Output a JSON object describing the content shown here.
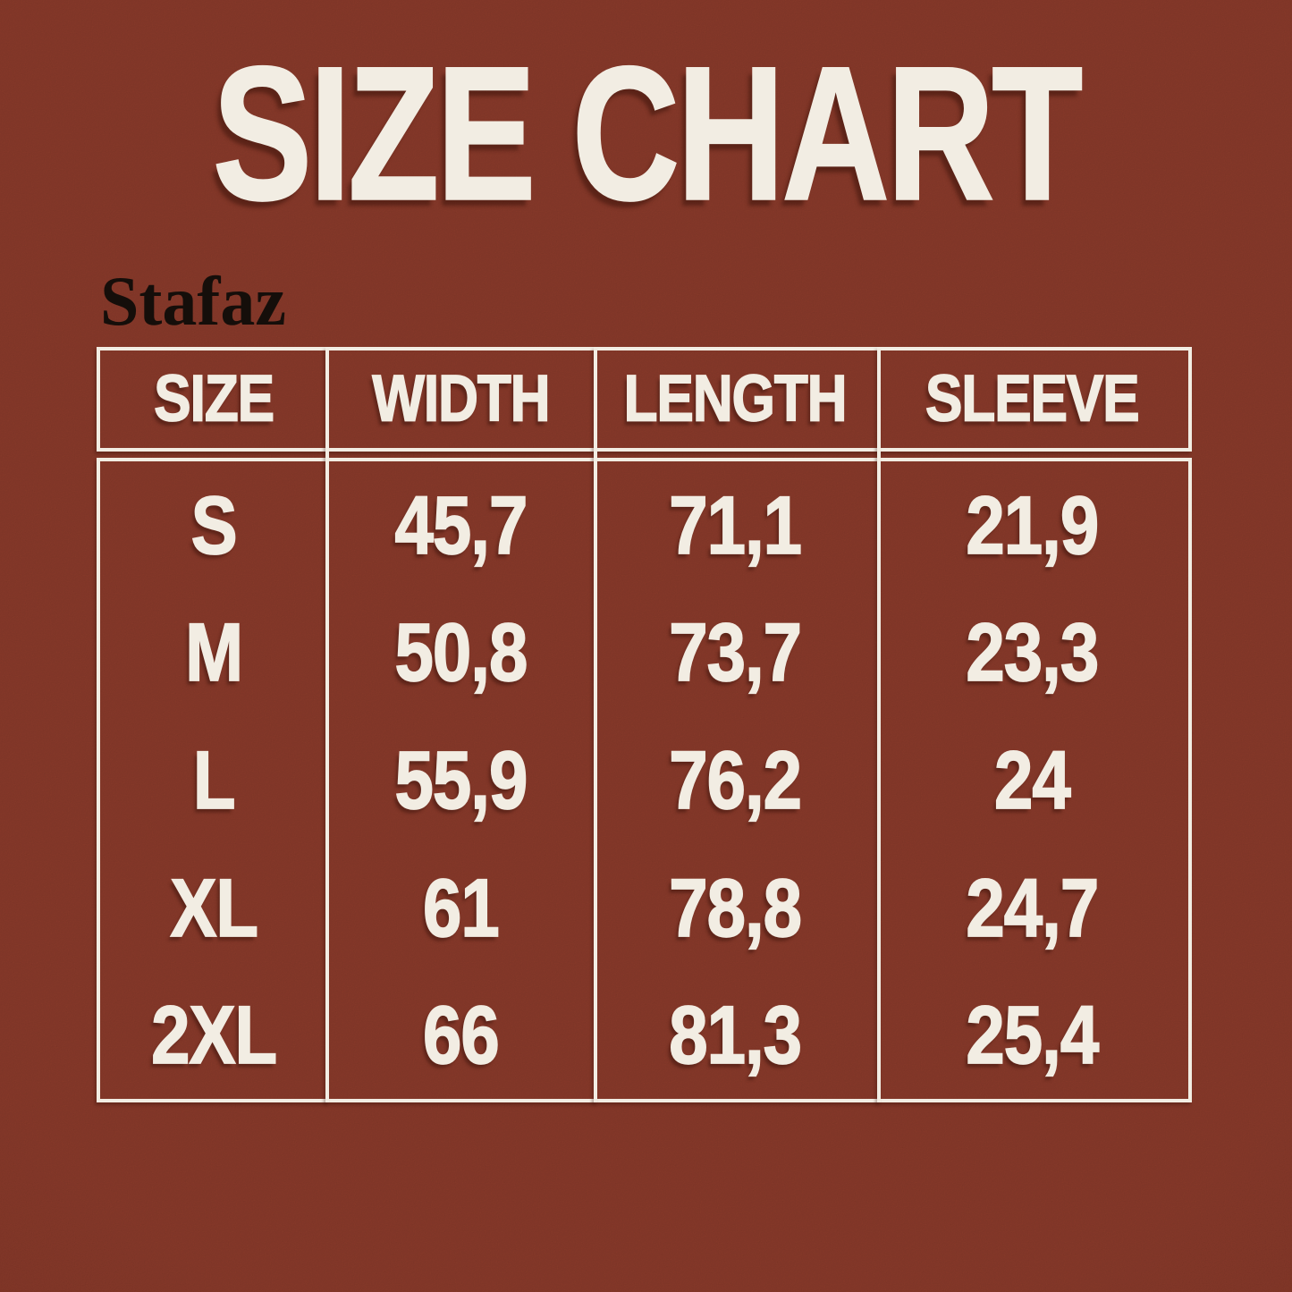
{
  "page": {
    "title": "SIZE CHART",
    "brand": "Stafaz",
    "colors": {
      "background": "#8d3b2b",
      "ink": "#f2ede3",
      "brand_ink": "#150e0a"
    }
  },
  "chart_data": {
    "type": "table",
    "title": "SIZE CHART",
    "brand": "Stafaz",
    "columns": [
      "SIZE",
      "WIDTH",
      "LENGTH",
      "SLEEVE"
    ],
    "rows": [
      [
        "S",
        "45,7",
        "71,1",
        "21,9"
      ],
      [
        "M",
        "50,8",
        "73,7",
        "23,3"
      ],
      [
        "L",
        "55,9",
        "76,2",
        "24"
      ],
      [
        "XL",
        "61",
        "78,8",
        "24,7"
      ],
      [
        "2XL",
        "66",
        "81,3",
        "25,4"
      ]
    ]
  }
}
